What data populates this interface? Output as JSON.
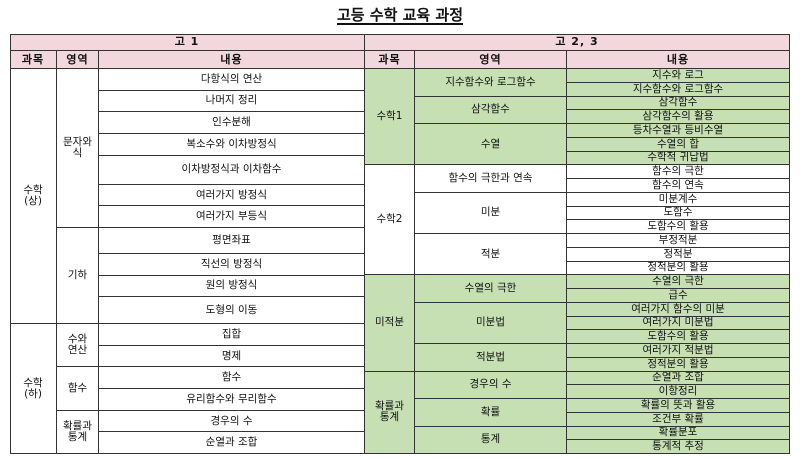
{
  "title": "고등 수학 교육 과정",
  "left": {
    "header": "고 1",
    "col_headers": {
      "subject": "과목",
      "area": "영역",
      "content": "내용"
    },
    "subjects": [
      {
        "name": "수학\n(상)",
        "areas": [
          {
            "name": "문자와\n식",
            "items": [
              "다항식의 연산",
              "나머지 정리",
              "인수분해",
              "복소수와 이차방정식",
              "이차방정식과 이차함수",
              "여러가지 방정식",
              "여러가지 부등식"
            ]
          },
          {
            "name": "기하",
            "items": [
              "평면좌표",
              "직선의 방정식",
              "원의 방정식",
              "도형의 이동"
            ]
          }
        ]
      },
      {
        "name": "수학\n(하)",
        "areas": [
          {
            "name": "수와\n연산",
            "items": [
              "집합",
              "명제"
            ]
          },
          {
            "name": "함수",
            "items": [
              "함수",
              "유리함수와 무리함수"
            ]
          },
          {
            "name": "확률과\n통계",
            "items": [
              "경우의 수",
              "순열과 조합"
            ]
          }
        ]
      }
    ]
  },
  "right": {
    "header": "고 2, 3",
    "col_headers": {
      "subject": "과목",
      "area": "영역",
      "content": "내용"
    },
    "subjects": [
      {
        "name": "수학1",
        "areas": [
          {
            "name": "지수함수와 로그함수",
            "items": [
              "지수와 로그",
              "지수함수와 로그함수"
            ]
          },
          {
            "name": "삼각함수",
            "items": [
              "삼각함수",
              "삼각함수의 활용"
            ]
          },
          {
            "name": "수열",
            "items": [
              "등차수열과 등비수열",
              "수열의 합",
              "수학적 귀납법"
            ]
          }
        ]
      },
      {
        "name": "수학2",
        "areas": [
          {
            "name": "함수의 극한과 연속",
            "items": [
              "함수의 극한",
              "함수의 연속"
            ]
          },
          {
            "name": "미분",
            "items": [
              "미분계수",
              "도함수",
              "도함수의 활용"
            ]
          },
          {
            "name": "적분",
            "items": [
              "부정적분",
              "정적분",
              "정적분의 활용"
            ]
          }
        ]
      },
      {
        "name": "미적분",
        "areas": [
          {
            "name": "수열의 극한",
            "items": [
              "수열의 극한",
              "급수"
            ]
          },
          {
            "name": "미분법",
            "items": [
              "여러가지 함수의 미분",
              "여러가지 미분법",
              "도함수의 활용"
            ]
          },
          {
            "name": "적분법",
            "items": [
              "여러가지 적분법",
              "정적분의 활용"
            ]
          }
        ]
      },
      {
        "name": "확률과\n통계",
        "areas": [
          {
            "name": "경우의  수",
            "items": [
              "순열과 조합",
              "이항정리"
            ]
          },
          {
            "name": "확률",
            "items": [
              "확률의 뜻과 활용",
              "조건부 확률"
            ]
          },
          {
            "name": "통계",
            "items": [
              "확률분포",
              "통계적 추정"
            ]
          }
        ]
      }
    ]
  },
  "colors": {
    "header_bg": "#f2d7dc",
    "highlight_bg": "#c6e0b4",
    "border": "#333333"
  }
}
